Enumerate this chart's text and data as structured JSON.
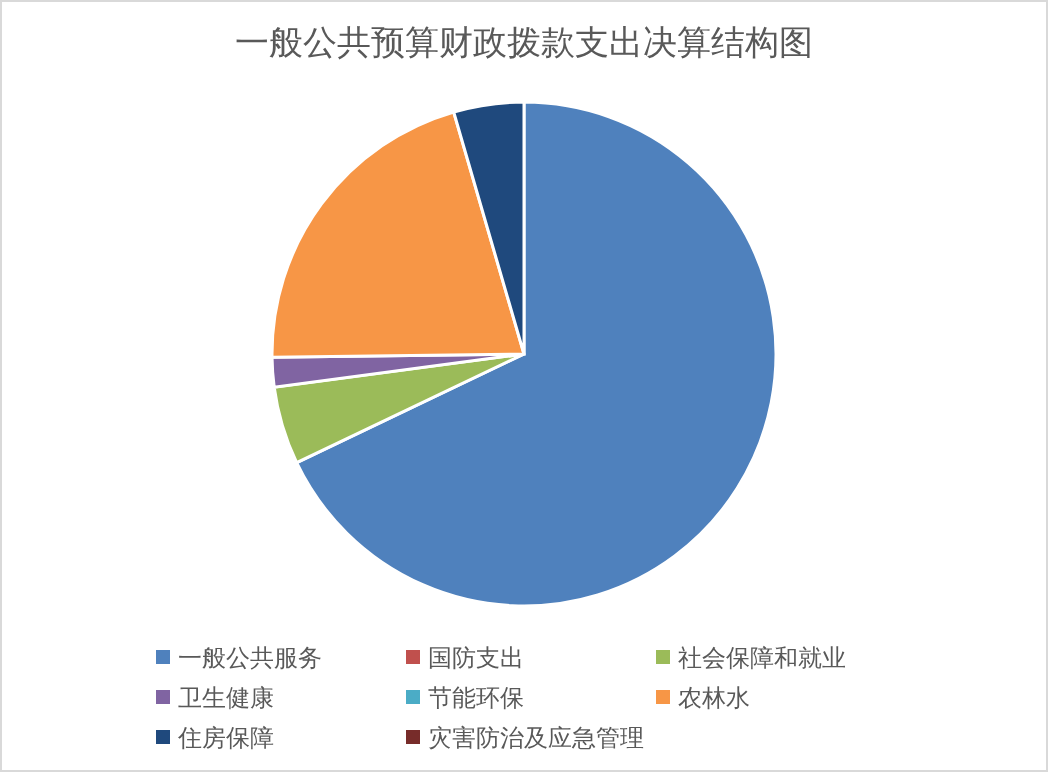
{
  "chart_data": {
    "type": "pie",
    "title": "一般公共预算财政拨款支出决算结构图",
    "categories": [
      "一般公共服务",
      "国防支出",
      "社会保障和就业",
      "卫生健康",
      "节能环保",
      "农林水",
      "住房保障",
      "灾害防治及应急管理"
    ],
    "values": [
      67.9,
      0,
      5,
      1.9,
      0,
      20.7,
      4.5,
      0
    ],
    "colors": [
      "#4f81bd",
      "#c0504d",
      "#9bbb59",
      "#8064a2",
      "#4bacc6",
      "#f79646",
      "#1f497d",
      "#772c2a"
    ],
    "legend": "bottom"
  }
}
